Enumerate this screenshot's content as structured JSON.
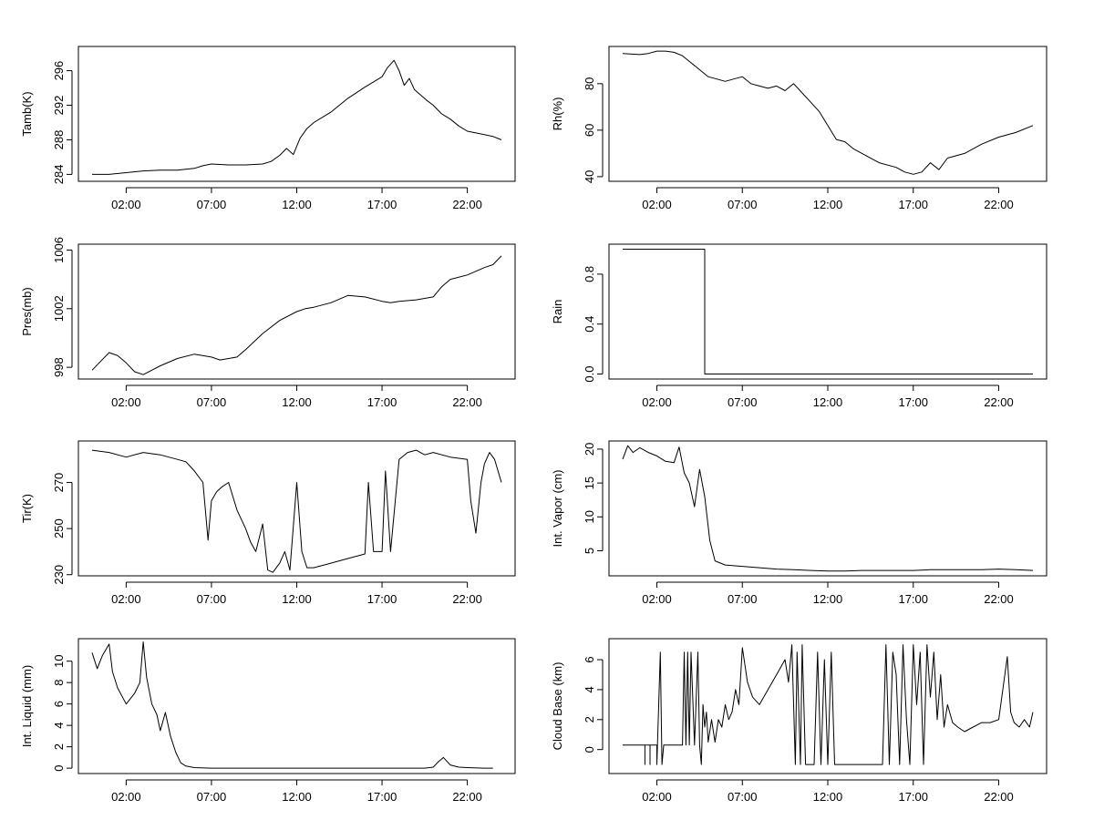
{
  "chart_data": [
    {
      "type": "line",
      "ylabel": "Tamb(K)",
      "xlabel": "",
      "title": "",
      "x_ticks": [
        "02:00",
        "07:00",
        "12:00",
        "17:00",
        "22:00"
      ],
      "xlim_hours": [
        -0.8,
        24.8
      ],
      "ylim": [
        283.2,
        298.8
      ],
      "y_ticks": [
        "284",
        "288",
        "292",
        "296"
      ],
      "series": [
        {
          "name": "Tamb(K)",
          "color": "#000000",
          "x": [
            0,
            1,
            2,
            3,
            4,
            5,
            6,
            6.5,
            7,
            8,
            9,
            10,
            10.5,
            11,
            11.4,
            11.8,
            12.2,
            12.6,
            13,
            14,
            15,
            16,
            16.5,
            17,
            17.3,
            17.7,
            18,
            18.3,
            18.6,
            18.9,
            19.2,
            19.6,
            20,
            20.5,
            21,
            21.5,
            22,
            22.5,
            23,
            23.5,
            24
          ],
          "values": [
            284.0,
            284.0,
            284.2,
            284.4,
            284.5,
            284.5,
            284.7,
            285.0,
            285.2,
            285.1,
            285.1,
            285.2,
            285.5,
            286.2,
            287.0,
            286.3,
            288.2,
            289.3,
            290.0,
            291.2,
            292.8,
            294.1,
            294.7,
            295.3,
            296.3,
            297.2,
            296.0,
            294.3,
            295.1,
            293.8,
            293.3,
            292.6,
            292.0,
            291.0,
            290.4,
            289.6,
            289.0,
            288.8,
            288.6,
            288.4,
            288.0
          ]
        }
      ]
    },
    {
      "type": "line",
      "ylabel": "Rh(%)",
      "xlabel": "",
      "title": "",
      "x_ticks": [
        "02:00",
        "07:00",
        "12:00",
        "17:00",
        "22:00"
      ],
      "xlim_hours": [
        -0.8,
        24.8
      ],
      "ylim": [
        38,
        96
      ],
      "y_ticks": [
        "40",
        "60",
        "80"
      ],
      "series": [
        {
          "name": "Rh(%)",
          "color": "#000000",
          "x": [
            0,
            1,
            1.5,
            2,
            2.5,
            3,
            3.5,
            4,
            4.5,
            5,
            5.5,
            6,
            6.5,
            7,
            7.5,
            8,
            8.5,
            9,
            9.5,
            10,
            10.5,
            11,
            11.5,
            12,
            12.5,
            13,
            13.5,
            14,
            15,
            16,
            16.5,
            17,
            17.5,
            18,
            18.5,
            19,
            20,
            21,
            22,
            23,
            24
          ],
          "values": [
            93,
            92.5,
            93,
            94,
            94,
            93.5,
            92,
            89,
            86,
            83,
            82,
            81,
            82,
            83,
            80,
            79,
            78,
            79,
            77,
            80,
            76,
            72,
            68,
            62,
            56,
            55,
            52,
            50,
            46,
            44,
            42,
            41,
            42,
            46,
            43,
            48,
            50,
            54,
            57,
            59,
            62
          ]
        }
      ]
    },
    {
      "type": "line",
      "ylabel": "Pres(mb)",
      "xlabel": "",
      "title": "",
      "x_ticks": [
        "02:00",
        "07:00",
        "12:00",
        "17:00",
        "22:00"
      ],
      "xlim_hours": [
        -0.8,
        24.8
      ],
      "ylim": [
        997.2,
        1006.4
      ],
      "y_ticks": [
        "998",
        "1002",
        "1006"
      ],
      "series": [
        {
          "name": "Pres(mb)",
          "color": "#000000",
          "x": [
            0,
            0.5,
            1,
            1.5,
            2,
            2.5,
            3,
            3.5,
            4,
            5,
            6,
            7,
            7.5,
            8,
            8.5,
            9,
            10,
            11,
            12,
            12.5,
            13,
            14,
            15,
            16,
            17,
            17.5,
            18,
            19,
            20,
            20.5,
            21,
            22,
            23,
            23.5,
            24
          ],
          "values": [
            997.8,
            998.4,
            999.0,
            998.8,
            998.3,
            997.7,
            997.5,
            997.8,
            998.1,
            998.6,
            998.9,
            998.7,
            998.5,
            998.6,
            998.7,
            999.2,
            1000.3,
            1001.2,
            1001.8,
            1002.0,
            1002.1,
            1002.4,
            1002.9,
            1002.8,
            1002.5,
            1002.4,
            1002.5,
            1002.6,
            1002.8,
            1003.5,
            1004.0,
            1004.3,
            1004.8,
            1005.0,
            1005.6
          ]
        }
      ]
    },
    {
      "type": "line",
      "ylabel": "Rain",
      "xlabel": "",
      "title": "",
      "x_ticks": [
        "02:00",
        "07:00",
        "12:00",
        "17:00",
        "22:00"
      ],
      "xlim_hours": [
        -0.8,
        24.8
      ],
      "ylim": [
        -0.04,
        1.04
      ],
      "y_ticks": [
        "0.0",
        "0.4",
        "0.8"
      ],
      "series": [
        {
          "name": "Rain",
          "color": "#000000",
          "x": [
            0,
            4.8,
            4.8,
            24
          ],
          "values": [
            1.0,
            1.0,
            0.0,
            0.0
          ]
        }
      ]
    },
    {
      "type": "line",
      "ylabel": "Tir(K)",
      "xlabel": "",
      "title": "",
      "x_ticks": [
        "02:00",
        "07:00",
        "12:00",
        "17:00",
        "22:00"
      ],
      "xlim_hours": [
        -0.8,
        24.8
      ],
      "ylim": [
        229.5,
        288
      ],
      "y_ticks": [
        "230",
        "250",
        "270"
      ],
      "series": [
        {
          "name": "Tir(K)",
          "color": "#000000",
          "x": [
            0,
            1,
            2,
            3,
            4,
            5,
            5.5,
            6,
            6.5,
            6.8,
            7,
            7.3,
            7.6,
            8,
            8.5,
            9,
            9.3,
            9.6,
            10,
            10.3,
            10.6,
            11,
            11.3,
            11.6,
            12,
            12.3,
            12.6,
            13,
            14,
            15,
            15.5,
            16,
            16.2,
            16.5,
            17,
            17.2,
            17.5,
            18,
            18.5,
            19,
            19.5,
            20,
            21,
            22,
            22.2,
            22.5,
            22.8,
            23,
            23.3,
            23.6,
            24
          ],
          "values": [
            284,
            283,
            281,
            283,
            282,
            280,
            279,
            275,
            270,
            245,
            262,
            266,
            268,
            270,
            258,
            250,
            244,
            240,
            252,
            232,
            231,
            235,
            240,
            232,
            270,
            240,
            233,
            233,
            235,
            237,
            238,
            239,
            270,
            240,
            240,
            275,
            240,
            280,
            283,
            284,
            282,
            283,
            281,
            280,
            262,
            248,
            270,
            278,
            283,
            280,
            270
          ]
        }
      ]
    },
    {
      "type": "line",
      "ylabel": "Int. Vapor (cm)",
      "xlabel": "",
      "title": "",
      "x_ticks": [
        "02:00",
        "07:00",
        "12:00",
        "17:00",
        "22:00"
      ],
      "xlim_hours": [
        -0.8,
        24.8
      ],
      "ylim": [
        1.3,
        21.2
      ],
      "y_ticks": [
        "5",
        "10",
        "15",
        "20"
      ],
      "series": [
        {
          "name": "Int. Vapor (cm)",
          "color": "#000000",
          "x": [
            0,
            0.3,
            0.6,
            1,
            1.5,
            2,
            2.5,
            3,
            3.3,
            3.6,
            3.9,
            4.2,
            4.5,
            4.8,
            5.1,
            5.4,
            6,
            7,
            8,
            9,
            10,
            11,
            12,
            13,
            14,
            15,
            16,
            17,
            18,
            19,
            20,
            21,
            22,
            23,
            24
          ],
          "values": [
            18.5,
            20.5,
            19.5,
            20.2,
            19.5,
            19.0,
            18.2,
            18.0,
            20.3,
            16.5,
            15.0,
            11.5,
            17.0,
            13.0,
            6.5,
            3.5,
            2.9,
            2.7,
            2.5,
            2.3,
            2.2,
            2.1,
            2.0,
            2.0,
            2.1,
            2.1,
            2.1,
            2.1,
            2.2,
            2.2,
            2.2,
            2.2,
            2.3,
            2.2,
            2.1
          ]
        }
      ]
    },
    {
      "type": "line",
      "ylabel": "Int. Liquid (mm)",
      "xlabel": "",
      "title": "",
      "x_ticks": [
        "02:00",
        "07:00",
        "12:00",
        "17:00",
        "22:00"
      ],
      "xlim_hours": [
        -0.8,
        24.8
      ],
      "ylim": [
        -0.5,
        12.1
      ],
      "y_ticks": [
        "0",
        "2",
        "4",
        "6",
        "8",
        "10"
      ],
      "series": [
        {
          "name": "Int. Liquid (mm)",
          "color": "#000000",
          "x": [
            0,
            0.3,
            0.6,
            1,
            1.2,
            1.5,
            2,
            2.5,
            2.8,
            3,
            3.2,
            3.5,
            3.8,
            4,
            4.3,
            4.6,
            4.9,
            5.2,
            5.5,
            6,
            7,
            8,
            9,
            10,
            11,
            12,
            13,
            14,
            15,
            16,
            17,
            18,
            19,
            19.5,
            20,
            20.3,
            20.6,
            21,
            21.5,
            22,
            23,
            23.5
          ],
          "values": [
            10.8,
            9.3,
            10.5,
            11.6,
            9.0,
            7.5,
            6.0,
            7.0,
            8.0,
            11.8,
            8.5,
            6.0,
            5.0,
            3.5,
            5.2,
            3.0,
            1.5,
            0.5,
            0.2,
            0.05,
            0,
            0,
            0,
            0,
            0,
            0,
            0,
            0,
            0,
            0,
            0,
            0,
            0,
            0,
            0.1,
            0.6,
            1.0,
            0.3,
            0.1,
            0.05,
            0,
            0
          ]
        }
      ]
    },
    {
      "type": "line",
      "ylabel": "Cloud Base (km)",
      "xlabel": "",
      "title": "",
      "x_ticks": [
        "02:00",
        "07:00",
        "12:00",
        "17:00",
        "22:00"
      ],
      "xlim_hours": [
        -0.8,
        24.8
      ],
      "ylim": [
        -1.6,
        7.4
      ],
      "y_ticks": [
        "0",
        "2",
        "4",
        "6"
      ],
      "series": [
        {
          "name": "Cloud Base (km)",
          "color": "#000000",
          "x": [
            0,
            1.3,
            1.3,
            1.3,
            1.6,
            1.6,
            1.6,
            2,
            2,
            2.2,
            2.3,
            2.4,
            2.5,
            3,
            3.5,
            3.6,
            3.7,
            3.8,
            3.9,
            4,
            4.2,
            4.4,
            4.5,
            4.6,
            4.7,
            4.8,
            4.9,
            5,
            5.2,
            5.4,
            5.6,
            5.8,
            6,
            6.2,
            6.4,
            6.6,
            6.8,
            7,
            7.3,
            7.6,
            8,
            8.5,
            9,
            9.5,
            9.7,
            9.9,
            10.1,
            10.2,
            10.4,
            10.5,
            10.7,
            11,
            11.2,
            11.4,
            11.6,
            11.8,
            12,
            12.2,
            12.4,
            13,
            14,
            15,
            15.2,
            15.4,
            15.6,
            15.8,
            16,
            16.2,
            16.4,
            16.6,
            16.8,
            17,
            17.2,
            17.4,
            17.6,
            17.8,
            18,
            18.2,
            18.4,
            18.6,
            18.8,
            19,
            19.3,
            19.6,
            20,
            20.5,
            21,
            21.5,
            22,
            22.3,
            22.5,
            22.7,
            22.9,
            23.2,
            23.5,
            23.8,
            24
          ],
          "values": [
            0.3,
            0.3,
            -1,
            0.3,
            0.3,
            -1,
            0.3,
            0.3,
            -1,
            6.5,
            -1,
            0.3,
            0.3,
            0.3,
            0.3,
            6.5,
            0.3,
            6.5,
            0.3,
            6.5,
            0.3,
            6.5,
            0.3,
            -1,
            3.0,
            1.5,
            2.5,
            0.5,
            2.0,
            0.5,
            2.0,
            1.5,
            3.0,
            2.0,
            2.5,
            4.0,
            3.0,
            6.8,
            4.5,
            3.5,
            3.0,
            4.0,
            5.0,
            6.0,
            4.5,
            7.0,
            -1,
            6.5,
            -1,
            7.0,
            -1,
            -1,
            -1,
            6.5,
            -1,
            6.0,
            -1,
            6.5,
            -1,
            -1,
            -1,
            -1,
            -1,
            7.0,
            -1,
            6.5,
            5.0,
            -1,
            7.0,
            2.0,
            -1,
            7.0,
            3.0,
            6.5,
            -1,
            7.0,
            3.5,
            6.5,
            2.0,
            5.0,
            1.5,
            3.0,
            1.8,
            1.5,
            1.2,
            1.5,
            1.8,
            1.8,
            2.0,
            4.5,
            6.2,
            2.5,
            1.8,
            1.5,
            2.0,
            1.5,
            2.5
          ]
        }
      ]
    }
  ]
}
